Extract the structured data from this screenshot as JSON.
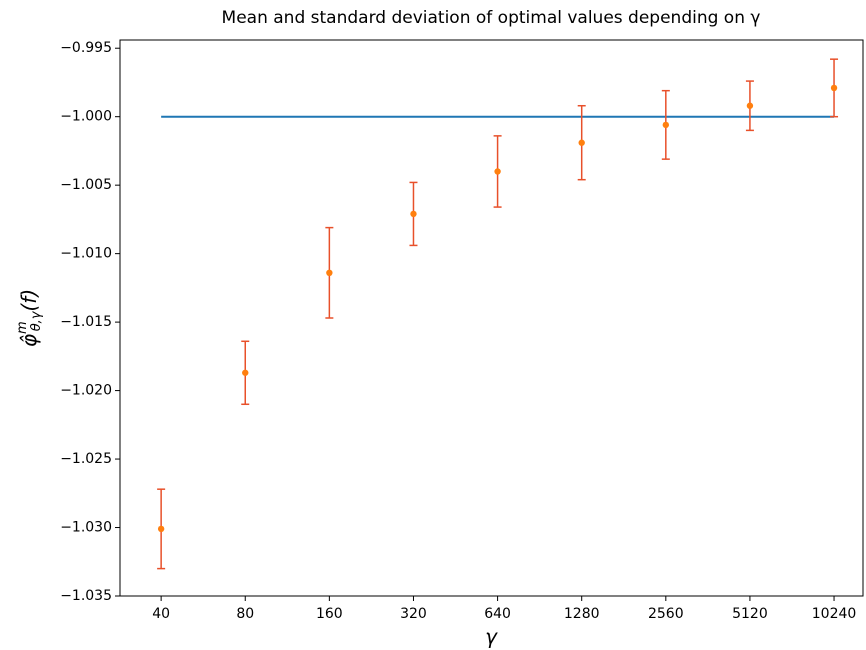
{
  "chart_data": {
    "type": "line",
    "title": "Mean and standard deviation of optimal values depending on γ",
    "xlabel": "γ",
    "ylabel": {
      "base": "φ̂",
      "sup": "m",
      "sub": "θ,γ",
      "arg": "(f)"
    },
    "x": [
      40,
      80,
      160,
      320,
      640,
      1280,
      2560,
      5120,
      10240
    ],
    "xscale": "log",
    "xlim": [
      28.5,
      13000
    ],
    "xticks": [
      40,
      80,
      160,
      320,
      640,
      1280,
      2560,
      5120,
      10240
    ],
    "ylim": [
      -1.035,
      -0.9944
    ],
    "yticks": [
      {
        "value": -1.035,
        "label": "−1.035"
      },
      {
        "value": -1.03,
        "label": "−1.030"
      },
      {
        "value": -1.025,
        "label": "−1.025"
      },
      {
        "value": -1.02,
        "label": "−1.020"
      },
      {
        "value": -1.015,
        "label": "−1.015"
      },
      {
        "value": -1.01,
        "label": "−1.010"
      },
      {
        "value": -1.005,
        "label": "−1.005"
      },
      {
        "value": -1.0,
        "label": "−1.000"
      },
      {
        "value": -0.995,
        "label": "−0.995"
      }
    ],
    "series": [
      {
        "type": "line",
        "color": "#1f77b4",
        "values": [
          -1.0,
          -1.0,
          -1.0,
          -1.0,
          -1.0,
          -1.0,
          -1.0,
          -1.0,
          -1.0
        ]
      },
      {
        "type": "errorbar",
        "color": "#ff7f0e",
        "ecolor": "#e8502a",
        "values": [
          -1.0301,
          -1.0187,
          -1.0114,
          -1.0071,
          -1.004,
          -1.0019,
          -1.0006,
          -0.9992,
          -0.9979
        ],
        "errors": [
          0.0029,
          0.0023,
          0.0033,
          0.0023,
          0.0026,
          0.0027,
          0.0025,
          0.0018,
          0.0021
        ]
      }
    ]
  }
}
